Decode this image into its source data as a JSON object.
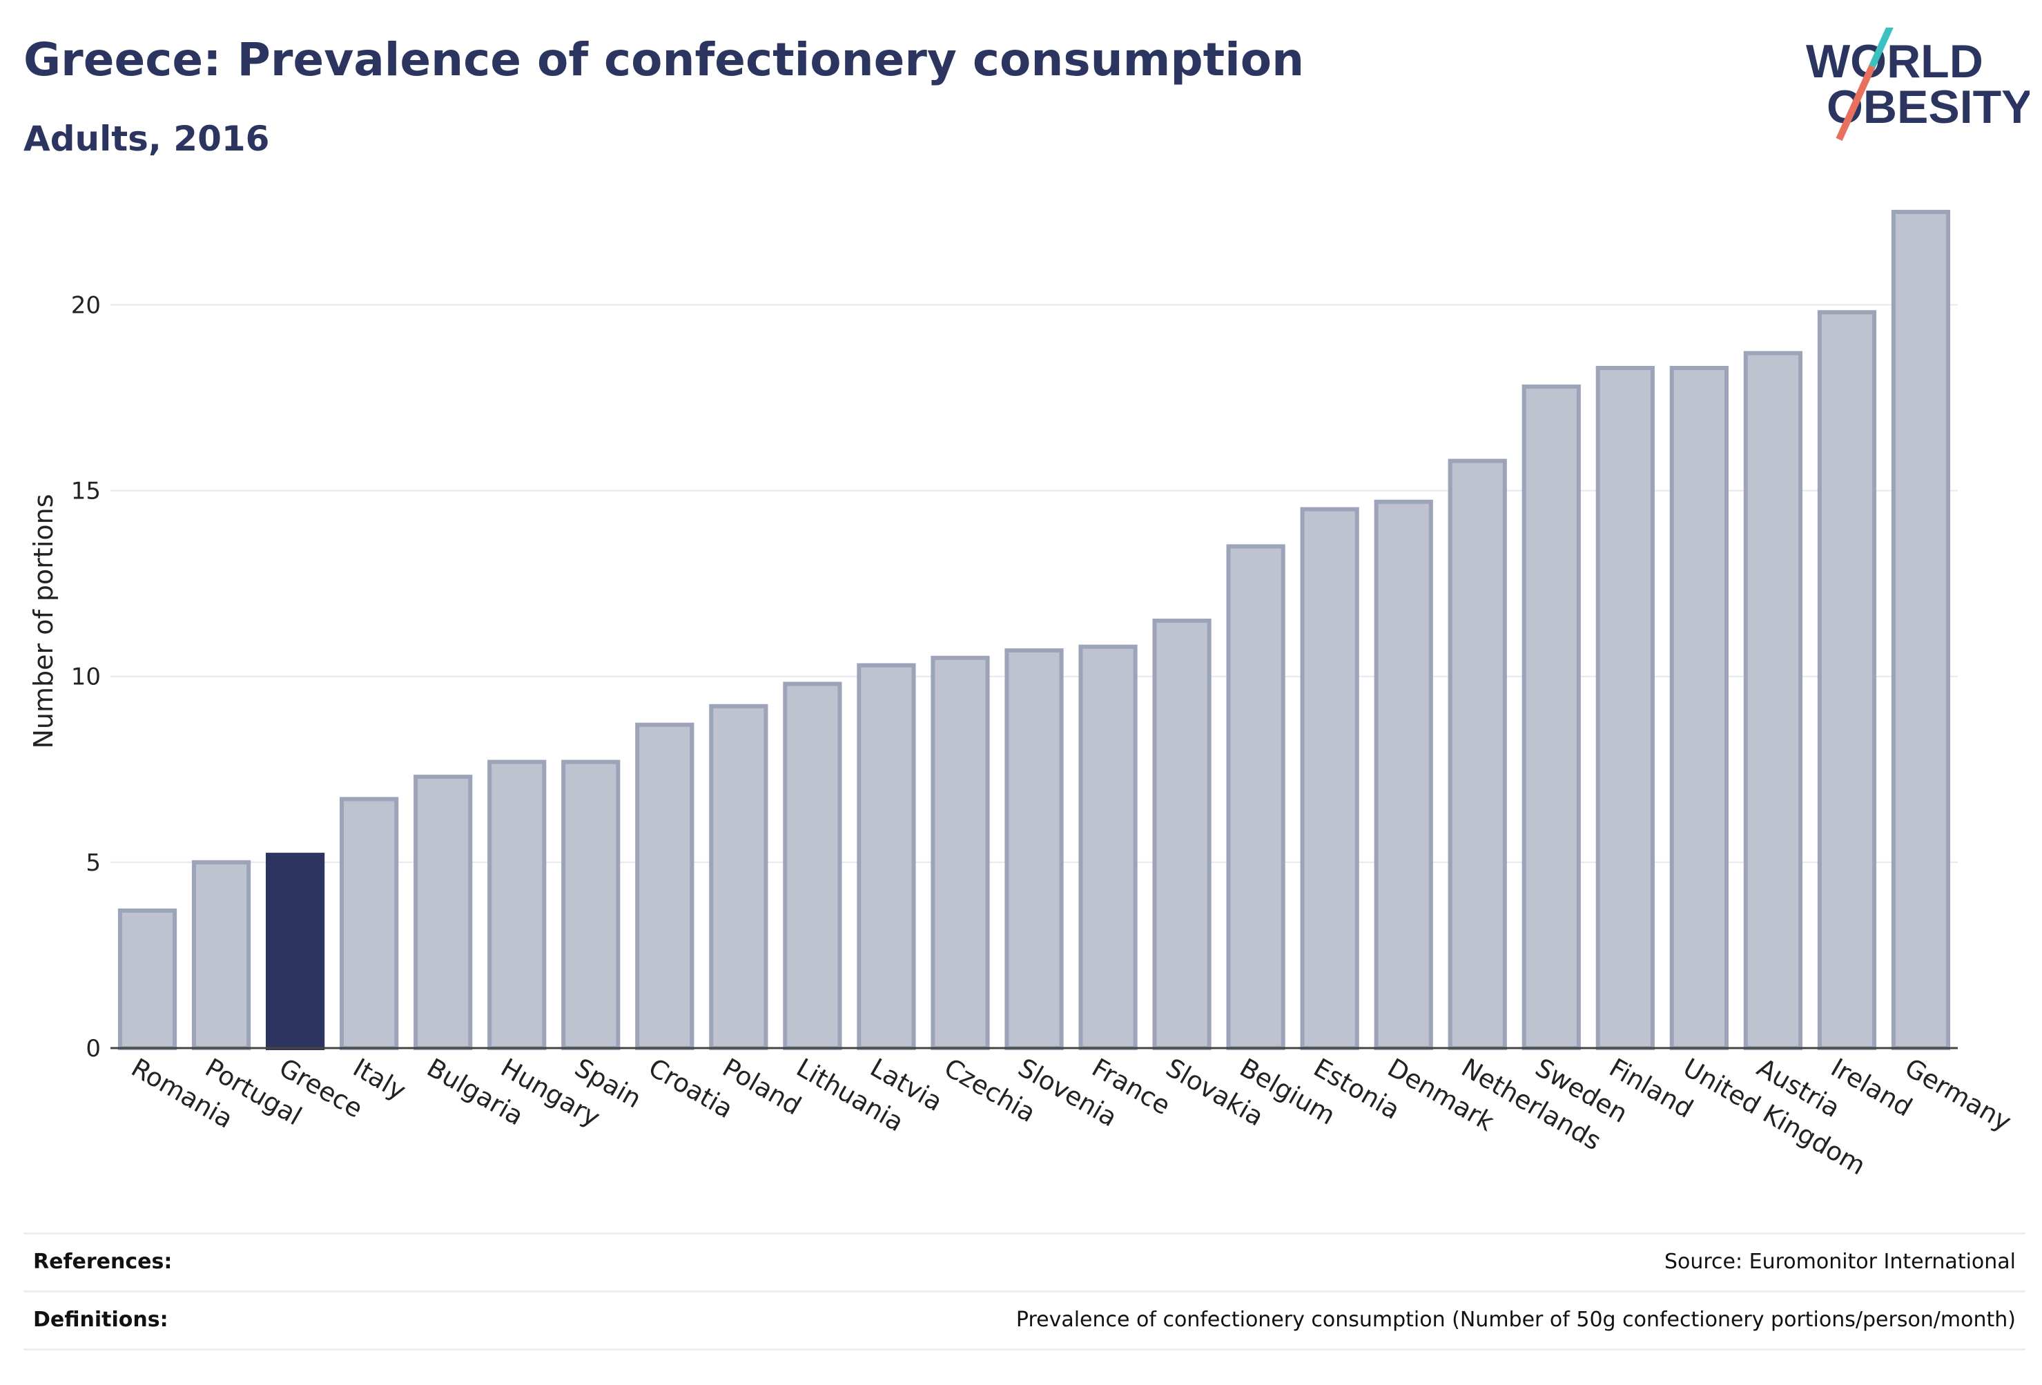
{
  "header": {
    "title": "Greece: Prevalence of confectionery consumption",
    "subtitle": "Adults, 2016"
  },
  "logo": {
    "line1": "WORLD",
    "line2": "OBESITY",
    "colors": {
      "text": "#2b3560",
      "slash_top": "#3cc0c0",
      "slash_bottom": "#e8705e"
    }
  },
  "chart_data": {
    "type": "bar",
    "title": "",
    "xlabel": "",
    "ylabel": "Number of portions",
    "ylim": [
      0,
      23
    ],
    "yticks": [
      0,
      5,
      10,
      15,
      20
    ],
    "grid": true,
    "highlight": "Greece",
    "colors": {
      "bar": "#bfc3d0",
      "bar_border": "#9da3b8",
      "highlight": "#2b3560",
      "grid": "#e6e8ef",
      "axis": "#444444"
    },
    "categories": [
      "Romania",
      "Portugal",
      "Greece",
      "Italy",
      "Bulgaria",
      "Hungary",
      "Spain",
      "Croatia",
      "Poland",
      "Lithuania",
      "Latvia",
      "Czechia",
      "Slovenia",
      "France",
      "Slovakia",
      "Belgium",
      "Estonia",
      "Denmark",
      "Netherlands",
      "Sweden",
      "Finland",
      "United Kingdom",
      "Austria",
      "Ireland",
      "Germany"
    ],
    "values": [
      3.7,
      5.0,
      5.2,
      6.7,
      7.3,
      7.7,
      7.7,
      8.7,
      9.2,
      9.8,
      10.3,
      10.5,
      10.7,
      10.8,
      11.5,
      13.5,
      14.5,
      14.7,
      15.8,
      17.8,
      18.3,
      18.3,
      18.7,
      19.8,
      22.5
    ]
  },
  "footer": {
    "references_label": "References:",
    "references_value": "Source: Euromonitor International",
    "definitions_label": "Definitions:",
    "definitions_value": "Prevalence of confectionery consumption (Number of 50g confectionery portions/person/month)"
  }
}
